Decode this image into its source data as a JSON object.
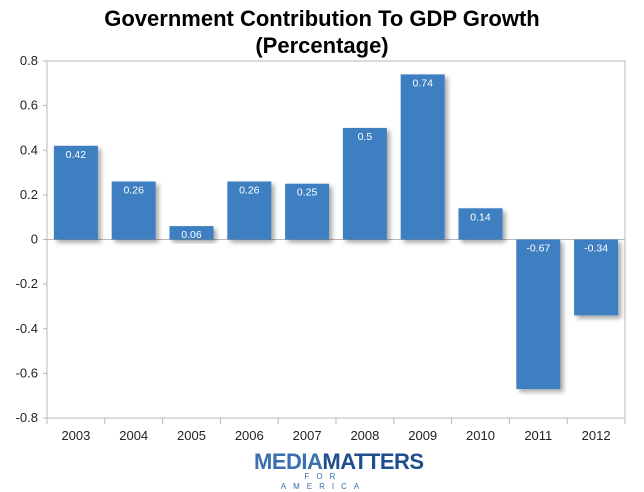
{
  "chart_data": {
    "type": "bar",
    "title": "Government Contribution To GDP Growth",
    "subtitle": "(Percentage)",
    "categories": [
      "2003",
      "2004",
      "2005",
      "2006",
      "2007",
      "2008",
      "2009",
      "2010",
      "2011",
      "2012"
    ],
    "values": [
      0.42,
      0.26,
      0.06,
      0.26,
      0.25,
      0.5,
      0.74,
      0.14,
      -0.67,
      -0.34
    ],
    "value_labels": [
      "0.42",
      "0.26",
      "0.06",
      "0.26",
      "0.25",
      "0.5",
      "0.74",
      "0.14",
      "-0.67",
      "-0.34"
    ],
    "ylim": [
      -0.8,
      0.8
    ],
    "yticks": [
      "0.8",
      "0.6",
      "0.4",
      "0.2",
      "0",
      "-0.2",
      "-0.4",
      "-0.6",
      "-0.8"
    ],
    "ytick_values": [
      0.8,
      0.6,
      0.4,
      0.2,
      0,
      -0.2,
      -0.4,
      -0.6,
      -0.8
    ],
    "xlabel": "",
    "ylabel": "",
    "grid": false,
    "bar_color": "#3d7fc1"
  },
  "logo": {
    "main_a": "MEDIA",
    "main_b": "MATTERS",
    "sub": "FOR AMERICA"
  }
}
